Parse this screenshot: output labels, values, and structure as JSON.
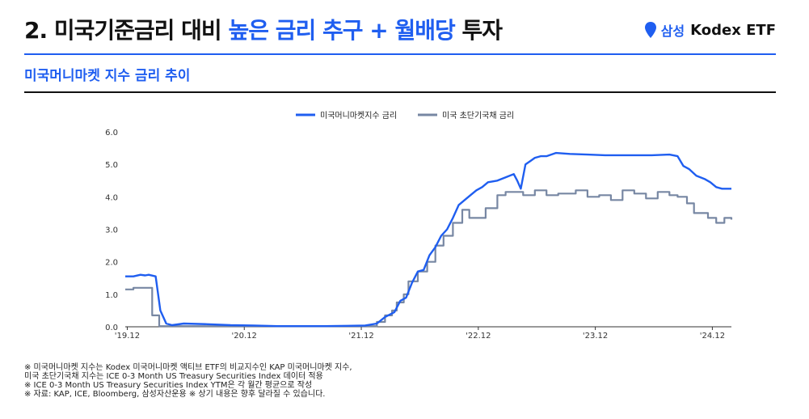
{
  "header": {
    "title_prefix": "2. 미국기준금리 대비",
    "title_accent": "높은 금리 추구 + 월배당",
    "title_suffix": "투자",
    "brand_samsung": "삼성",
    "brand_kodex": "Kodex ETF",
    "brand_icon": "location-pin-icon"
  },
  "subtitle": "미국머니마켓 지수 금리 추이",
  "colors": {
    "accent": "#1f5ef0",
    "series_1": "#1f5ef0",
    "series_2": "#7787a3"
  },
  "chart_data": {
    "type": "line",
    "title": "",
    "ylim": [
      0,
      6
    ],
    "yticks": [
      "6.0",
      "5.0",
      "4.0",
      "3.0",
      "2.0",
      "1.0",
      "0.0"
    ],
    "xlim": [
      2019.9,
      2025.08
    ],
    "xticks": [
      {
        "label": "'19.12",
        "value": 2019.917
      },
      {
        "label": "'20.12",
        "value": 2020.917
      },
      {
        "label": "'21.12",
        "value": 2021.917
      },
      {
        "label": "'22.12",
        "value": 2022.917
      },
      {
        "label": "'23.12",
        "value": 2023.917
      },
      {
        "label": "'24.12",
        "value": 2024.917
      }
    ],
    "grid": false,
    "legend": "top-center",
    "series": [
      {
        "name": "미국머니마켓지수 금리",
        "color": "#1f5ef0",
        "step": false,
        "points": [
          [
            2019.9,
            1.55
          ],
          [
            2019.97,
            1.55
          ],
          [
            2020.03,
            1.6
          ],
          [
            2020.07,
            1.58
          ],
          [
            2020.1,
            1.6
          ],
          [
            2020.16,
            1.55
          ],
          [
            2020.2,
            0.5
          ],
          [
            2020.25,
            0.1
          ],
          [
            2020.3,
            0.05
          ],
          [
            2020.4,
            0.1
          ],
          [
            2020.6,
            0.08
          ],
          [
            2020.8,
            0.05
          ],
          [
            2021.0,
            0.04
          ],
          [
            2021.2,
            0.02
          ],
          [
            2021.4,
            0.02
          ],
          [
            2021.6,
            0.02
          ],
          [
            2021.8,
            0.03
          ],
          [
            2021.95,
            0.04
          ],
          [
            2022.05,
            0.1
          ],
          [
            2022.12,
            0.3
          ],
          [
            2022.2,
            0.45
          ],
          [
            2022.25,
            0.8
          ],
          [
            2022.3,
            0.9
          ],
          [
            2022.35,
            1.35
          ],
          [
            2022.4,
            1.7
          ],
          [
            2022.45,
            1.75
          ],
          [
            2022.5,
            2.2
          ],
          [
            2022.55,
            2.45
          ],
          [
            2022.6,
            2.8
          ],
          [
            2022.65,
            3.0
          ],
          [
            2022.7,
            3.35
          ],
          [
            2022.75,
            3.75
          ],
          [
            2022.8,
            3.9
          ],
          [
            2022.85,
            4.05
          ],
          [
            2022.9,
            4.2
          ],
          [
            2022.95,
            4.3
          ],
          [
            2023.0,
            4.45
          ],
          [
            2023.08,
            4.5
          ],
          [
            2023.15,
            4.6
          ],
          [
            2023.22,
            4.7
          ],
          [
            2023.25,
            4.5
          ],
          [
            2023.28,
            4.25
          ],
          [
            2023.32,
            5.0
          ],
          [
            2023.36,
            5.1
          ],
          [
            2023.4,
            5.2
          ],
          [
            2023.45,
            5.25
          ],
          [
            2023.5,
            5.25
          ],
          [
            2023.58,
            5.35
          ],
          [
            2023.7,
            5.32
          ],
          [
            2023.85,
            5.3
          ],
          [
            2024.0,
            5.28
          ],
          [
            2024.2,
            5.28
          ],
          [
            2024.4,
            5.28
          ],
          [
            2024.55,
            5.3
          ],
          [
            2024.62,
            5.25
          ],
          [
            2024.67,
            4.95
          ],
          [
            2024.72,
            4.85
          ],
          [
            2024.78,
            4.65
          ],
          [
            2024.85,
            4.55
          ],
          [
            2024.9,
            4.45
          ],
          [
            2024.95,
            4.3
          ],
          [
            2025.0,
            4.25
          ],
          [
            2025.08,
            4.25
          ]
        ]
      },
      {
        "name": "미국 초단기국채 금리",
        "color": "#7787a3",
        "step": true,
        "points": [
          [
            2019.9,
            1.15
          ],
          [
            2019.97,
            1.2
          ],
          [
            2020.07,
            1.2
          ],
          [
            2020.13,
            0.35
          ],
          [
            2020.19,
            0.02
          ],
          [
            2020.5,
            0.02
          ],
          [
            2021.0,
            0.02
          ],
          [
            2021.5,
            0.02
          ],
          [
            2022.0,
            0.02
          ],
          [
            2022.05,
            0.15
          ],
          [
            2022.12,
            0.35
          ],
          [
            2022.18,
            0.5
          ],
          [
            2022.22,
            0.75
          ],
          [
            2022.28,
            1.0
          ],
          [
            2022.32,
            1.4
          ],
          [
            2022.4,
            1.7
          ],
          [
            2022.48,
            2.0
          ],
          [
            2022.55,
            2.5
          ],
          [
            2022.62,
            2.8
          ],
          [
            2022.7,
            3.2
          ],
          [
            2022.78,
            3.6
          ],
          [
            2022.84,
            3.35
          ],
          [
            2022.98,
            3.65
          ],
          [
            2023.08,
            4.05
          ],
          [
            2023.15,
            4.15
          ],
          [
            2023.22,
            4.15
          ],
          [
            2023.3,
            4.05
          ],
          [
            2023.4,
            4.2
          ],
          [
            2023.5,
            4.05
          ],
          [
            2023.6,
            4.1
          ],
          [
            2023.75,
            4.2
          ],
          [
            2023.85,
            4.0
          ],
          [
            2023.95,
            4.05
          ],
          [
            2024.05,
            3.9
          ],
          [
            2024.15,
            4.2
          ],
          [
            2024.25,
            4.1
          ],
          [
            2024.35,
            3.95
          ],
          [
            2024.45,
            4.15
          ],
          [
            2024.55,
            4.05
          ],
          [
            2024.62,
            4.0
          ],
          [
            2024.7,
            3.8
          ],
          [
            2024.76,
            3.5
          ],
          [
            2024.88,
            3.35
          ],
          [
            2024.95,
            3.2
          ],
          [
            2025.02,
            3.35
          ],
          [
            2025.08,
            3.3
          ]
        ]
      }
    ]
  },
  "notes": [
    "※ 미국머니마켓 지수는 Kodex 미국머니마켓 액티브 ETF의 비교지수인 KAP 미국머니마켓 지수,",
    "    미국 초단기국채 지수는 ICE 0-3 Month US Treasury Securities Index 데이터 적용",
    "※ ICE 0-3 Month US Treasury Securities Index YTM은 각 월간 평균으로 작성",
    "※ 자료: KAP, ICE, Bloomberg, 삼성자산운용 ※ 상기 내용은 향후 달라질 수 있습니다."
  ]
}
